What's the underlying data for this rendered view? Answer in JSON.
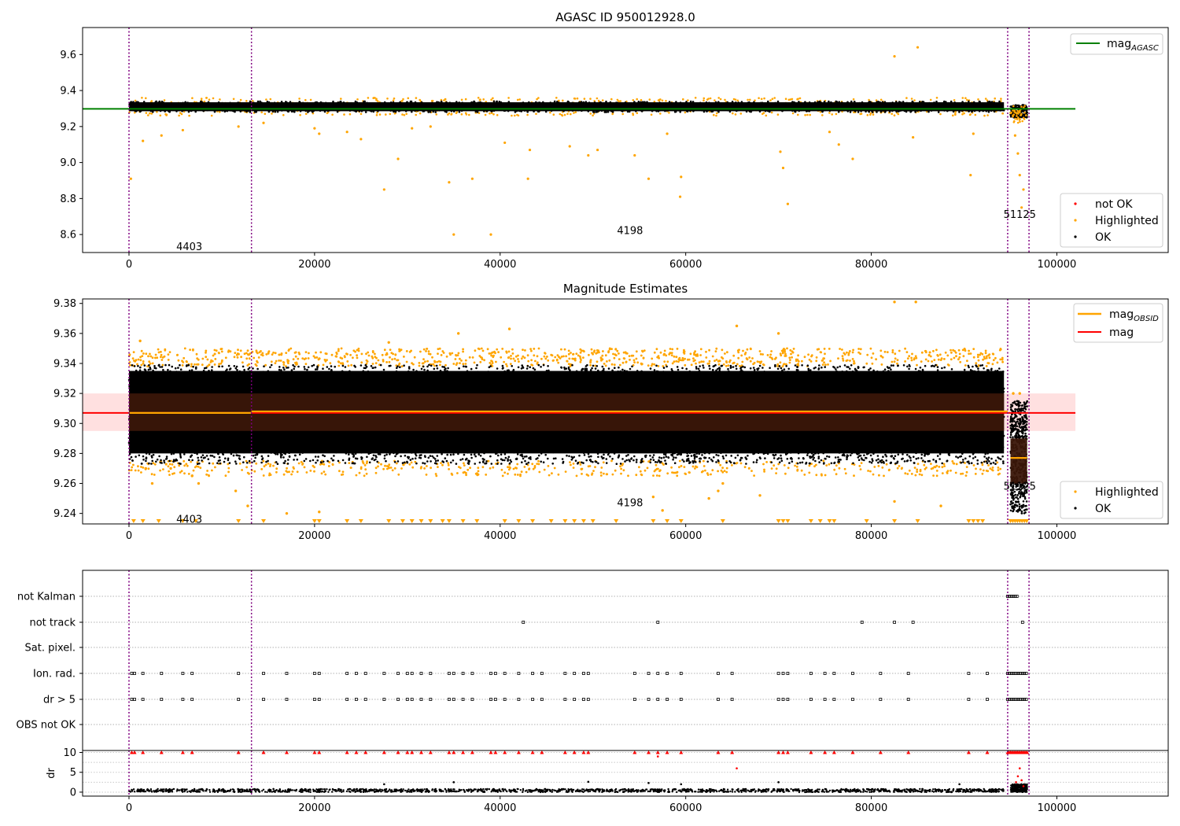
{
  "chart_data": [
    {
      "type": "scatter",
      "title": "AGASC ID 950012928.0",
      "xlim": [
        -5000,
        112000
      ],
      "ylim": [
        8.5,
        9.75
      ],
      "x_ticks": [
        0,
        20000,
        40000,
        60000,
        80000,
        100000
      ],
      "y_ticks": [
        8.6,
        8.8,
        9.0,
        9.2,
        9.4,
        9.6
      ],
      "grid": false,
      "obsid_boundaries": [
        0,
        13200,
        94700,
        97000
      ],
      "obsid_annotations": [
        {
          "text": "4403",
          "x": 6500,
          "y": 8.53
        },
        {
          "text": "4198",
          "x": 54000,
          "y": 8.62
        },
        {
          "text": "51125",
          "x": 96000,
          "y": 8.71
        }
      ],
      "mag_agasc": 9.298,
      "mag_line_x": [
        -5000,
        102000
      ],
      "ok_band": {
        "x_end": 94300,
        "y_low": 9.28,
        "y_high": 9.34
      },
      "ok_tail": {
        "x_start": 95000,
        "x_end": 96800,
        "y_low": 9.24,
        "y_high": 9.32
      },
      "highlighted_points": [
        [
          200,
          8.91
        ],
        [
          1500,
          9.12
        ],
        [
          3500,
          9.15
        ],
        [
          5800,
          9.18
        ],
        [
          11800,
          9.2
        ],
        [
          14500,
          9.22
        ],
        [
          20000,
          9.19
        ],
        [
          20500,
          9.16
        ],
        [
          23500,
          9.17
        ],
        [
          25000,
          9.13
        ],
        [
          27500,
          8.85
        ],
        [
          29000,
          9.02
        ],
        [
          30500,
          9.19
        ],
        [
          32500,
          9.2
        ],
        [
          34500,
          8.89
        ],
        [
          35000,
          8.6
        ],
        [
          37000,
          8.91
        ],
        [
          39000,
          8.6
        ],
        [
          40500,
          9.11
        ],
        [
          43000,
          8.91
        ],
        [
          43200,
          9.07
        ],
        [
          47500,
          9.09
        ],
        [
          49500,
          9.04
        ],
        [
          50500,
          9.07
        ],
        [
          54500,
          9.04
        ],
        [
          56000,
          8.91
        ],
        [
          58000,
          9.16
        ],
        [
          59500,
          8.92
        ],
        [
          59400,
          8.81
        ],
        [
          70200,
          9.06
        ],
        [
          70500,
          8.97
        ],
        [
          71000,
          8.77
        ],
        [
          75500,
          9.17
        ],
        [
          76500,
          9.1
        ],
        [
          78000,
          9.02
        ],
        [
          82500,
          9.59
        ],
        [
          84500,
          9.14
        ],
        [
          85000,
          9.64
        ],
        [
          90700,
          8.93
        ],
        [
          91000,
          9.16
        ],
        [
          95500,
          9.15
        ],
        [
          96000,
          8.93
        ],
        [
          96200,
          8.75
        ],
        [
          95800,
          9.05
        ],
        [
          96400,
          8.85
        ]
      ],
      "legend_upper": [
        {
          "label": "mag",
          "subscript": "AGASC",
          "color": "#008000"
        }
      ],
      "legend_lower": [
        {
          "label": "not OK",
          "color": "#ff0000"
        },
        {
          "label": "Highlighted",
          "color": "#ffa500"
        },
        {
          "label": "OK",
          "color": "#000000"
        }
      ]
    },
    {
      "type": "scatter",
      "title": "Magnitude Estimates",
      "xlim": [
        -5000,
        112000
      ],
      "ylim": [
        9.233,
        9.383
      ],
      "x_ticks": [
        0,
        20000,
        40000,
        60000,
        80000,
        100000
      ],
      "y_ticks": [
        9.24,
        9.26,
        9.28,
        9.3,
        9.32,
        9.34,
        9.36,
        9.38
      ],
      "grid": false,
      "obsid_boundaries": [
        0,
        13200,
        94700,
        97000
      ],
      "obsid_annotations": [
        {
          "text": "4403",
          "x": 6500,
          "y": 9.236
        },
        {
          "text": "4198",
          "x": 54000,
          "y": 9.247
        },
        {
          "text": "51125",
          "x": 96000,
          "y": 9.258
        }
      ],
      "mag_mean": 9.307,
      "mag_band": [
        9.295,
        9.32
      ],
      "mag_line_x": [
        -5000,
        102000
      ],
      "mag_obsid": [
        {
          "x": [
            0,
            13200
          ],
          "y": 9.307
        },
        {
          "x": [
            13200,
            94700
          ],
          "y": 9.308
        },
        {
          "x": [
            95000,
            96800
          ],
          "y": 9.277
        }
      ],
      "obsid_error_boxes": [
        {
          "x": [
            0,
            13200
          ],
          "y": [
            9.295,
            9.32
          ]
        },
        {
          "x": [
            13200,
            94300
          ],
          "y": [
            9.295,
            9.32
          ]
        },
        {
          "x": [
            95000,
            96800
          ],
          "y": [
            9.26,
            9.29
          ]
        }
      ],
      "ok_band": {
        "x_end": 94300,
        "y_low": 9.273,
        "y_high": 9.339
      },
      "ok_tail": {
        "x_start": 95000,
        "x_end": 96800,
        "y_low": 9.24,
        "y_high": 9.315
      },
      "highlighted_upper": {
        "x_end": 94300,
        "y_low": 9.338,
        "y_high": 9.35
      },
      "highlighted_lower": {
        "x_end": 94300,
        "y_low": 9.265,
        "y_high": 9.275
      },
      "highlighted_points": [
        [
          1200,
          9.355
        ],
        [
          1800,
          9.27
        ],
        [
          2500,
          9.26
        ],
        [
          4500,
          9.27
        ],
        [
          6800,
          9.265
        ],
        [
          7500,
          9.26
        ],
        [
          11500,
          9.255
        ],
        [
          12800,
          9.245
        ],
        [
          17000,
          9.24
        ],
        [
          20500,
          9.241
        ],
        [
          28000,
          9.354
        ],
        [
          35500,
          9.36
        ],
        [
          41000,
          9.363
        ],
        [
          56500,
          9.251
        ],
        [
          57500,
          9.242
        ],
        [
          62500,
          9.25
        ],
        [
          63500,
          9.255
        ],
        [
          64000,
          9.26
        ],
        [
          65500,
          9.365
        ],
        [
          68000,
          9.252
        ],
        [
          70000,
          9.36
        ],
        [
          82500,
          9.248
        ],
        [
          82500,
          9.381
        ],
        [
          84800,
          9.381
        ],
        [
          87500,
          9.245
        ],
        [
          95300,
          9.32
        ],
        [
          96000,
          9.32
        ]
      ],
      "clipped_x": [
        500,
        1500,
        3200,
        5800,
        7200,
        11800,
        14500,
        20000,
        20500,
        23500,
        25000,
        28000,
        29500,
        30500,
        31500,
        32500,
        33800,
        34500,
        36000,
        37500,
        40500,
        42000,
        43500,
        45500,
        47000,
        48000,
        49000,
        50000,
        52500,
        56500,
        58000,
        59500,
        64000,
        70000,
        70500,
        71000,
        73500,
        74500,
        75500,
        76000,
        79500,
        82500,
        85000,
        90500,
        91000,
        91500,
        92000
      ],
      "clipped_tail": [
        95000,
        96800
      ],
      "legend_upper": [
        {
          "label": "mag",
          "subscript": "OBSID",
          "color": "#ffa500"
        },
        {
          "label": "mag",
          "subscript": "",
          "color": "#ff0000"
        }
      ],
      "legend_lower": [
        {
          "label": "Highlighted",
          "color": "#ffa500"
        },
        {
          "label": "OK",
          "color": "#000000"
        }
      ]
    },
    {
      "type": "scatter",
      "title": "",
      "xlim": [
        -5000,
        112000
      ],
      "x_ticks": [
        0,
        20000,
        40000,
        60000,
        80000,
        100000
      ],
      "obsid_boundaries": [
        0,
        13200,
        94700,
        97000
      ],
      "flag_categories": [
        "not Kalman",
        "not track",
        "Sat. pixel.",
        "Ion. rad.",
        "dr > 5",
        "OBS not OK"
      ],
      "flags": {
        "not Kalman": {
          "points": [],
          "dense": [
            [
              94700,
              95800
            ]
          ]
        },
        "not track": {
          "points": [
            42500,
            57000,
            79000,
            82500,
            84500,
            96300
          ],
          "dense": []
        },
        "Sat. pixel.": {
          "points": [],
          "dense": []
        },
        "Ion. rad.": {
          "points": [
            300,
            600,
            1500,
            3500,
            5800,
            6800,
            11800,
            14500,
            17000,
            20000,
            20500,
            23500,
            24500,
            25500,
            27500,
            29000,
            30000,
            30500,
            31500,
            32500,
            34500,
            35000,
            36000,
            37000,
            39000,
            39500,
            40500,
            42000,
            43500,
            44500,
            47000,
            48000,
            49000,
            49500,
            54500,
            56000,
            57000,
            58000,
            59500,
            63500,
            65000,
            70000,
            70500,
            71000,
            73500,
            75000,
            76000,
            78000,
            81000,
            84000,
            90500,
            92500
          ],
          "dense": [
            [
              94700,
              96800
            ]
          ]
        },
        "dr > 5": {
          "points": [
            300,
            600,
            1500,
            3500,
            5800,
            6800,
            11800,
            14500,
            17000,
            20000,
            20500,
            23500,
            24500,
            25500,
            27500,
            29000,
            30000,
            30500,
            31500,
            32500,
            34500,
            35000,
            36000,
            37000,
            39000,
            39500,
            40500,
            42000,
            43500,
            44500,
            47000,
            48000,
            49000,
            49500,
            54500,
            56000,
            57000,
            58000,
            59500,
            63500,
            65000,
            70000,
            70500,
            71000,
            73500,
            75000,
            76000,
            78000,
            81000,
            84000,
            90500,
            92500
          ],
          "dense": [
            [
              94700,
              96800
            ]
          ]
        },
        "OBS not OK": {
          "points": [],
          "dense": []
        }
      },
      "legend_upper": [],
      "legend_lower": []
    },
    {
      "type": "scatter",
      "title": "",
      "xlim": [
        -5000,
        112000
      ],
      "ylim": [
        -1,
        10.5
      ],
      "ylabel": "dr",
      "x_ticks": [
        0,
        20000,
        40000,
        60000,
        80000,
        100000
      ],
      "y_ticks": [
        0,
        5,
        10
      ],
      "grid": "y",
      "obsid_boundaries": [
        0,
        13200,
        94700,
        97000
      ],
      "ok_band": {
        "x_end": 94300,
        "y_low": 0,
        "y_high": 0.8
      },
      "ok_tail": {
        "x_start": 95000,
        "x_end": 96800,
        "y_low": 0,
        "y_high": 2
      },
      "ok_points": [
        [
          27500,
          2
        ],
        [
          35000,
          2.5
        ],
        [
          49500,
          2.6
        ],
        [
          56000,
          2.3
        ],
        [
          59500,
          2
        ],
        [
          70000,
          2.5
        ],
        [
          89500,
          2
        ]
      ],
      "clipped_x": [
        300,
        600,
        1500,
        3500,
        5800,
        6800,
        11800,
        14500,
        17000,
        20000,
        20500,
        23500,
        24500,
        25500,
        27500,
        29000,
        30000,
        30500,
        31500,
        32500,
        34500,
        35000,
        36000,
        37000,
        39000,
        39500,
        40500,
        42000,
        43500,
        44500,
        47000,
        48000,
        49000,
        49500,
        54500,
        56000,
        57000,
        58000,
        59500,
        63500,
        65000,
        70000,
        70500,
        71000,
        73500,
        75000,
        76000,
        78000,
        81000,
        84000,
        90500,
        92500
      ],
      "clipped_tail": [
        94700,
        96800
      ],
      "not_ok_points": [
        [
          57000,
          9
        ],
        [
          65500,
          6
        ],
        [
          96000,
          6
        ],
        [
          95800,
          4
        ],
        [
          96200,
          3
        ],
        [
          96400,
          1.5
        ],
        [
          95600,
          2.5
        ]
      ],
      "legend_upper": [],
      "legend_lower": []
    }
  ]
}
